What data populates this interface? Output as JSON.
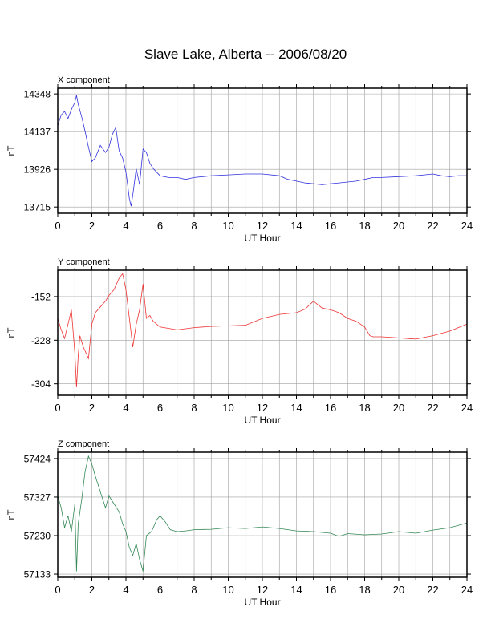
{
  "title": "Slave Lake, Alberta -- 2006/08/20",
  "chart_data": [
    {
      "type": "line",
      "panel_label": "X component",
      "xlabel": "UT Hour",
      "ylabel": "nT",
      "xlim": [
        0,
        24
      ],
      "ylim": [
        13680,
        14380
      ],
      "xticks": [
        0,
        2,
        4,
        6,
        8,
        10,
        12,
        14,
        16,
        18,
        20,
        22,
        24
      ],
      "yticks": [
        13715,
        13926,
        14137,
        14348
      ],
      "grid": true,
      "color": "#3333dd",
      "series": [
        {
          "x": [
            0,
            0.2,
            0.4,
            0.6,
            0.8,
            1.0,
            1.1,
            1.2,
            1.4,
            1.6,
            1.8,
            2.0,
            2.2,
            2.5,
            2.8,
            3.0,
            3.2,
            3.4,
            3.6,
            3.8,
            4.0,
            4.1,
            4.2,
            4.3,
            4.4,
            4.6,
            4.8,
            5.0,
            5.2,
            5.4,
            5.6,
            6.0,
            6.5,
            7.0,
            7.5,
            8.0,
            9.0,
            10.0,
            11.0,
            12.0,
            13.0,
            13.5,
            14.0,
            14.5,
            15.0,
            15.5,
            16.0,
            16.5,
            17.0,
            17.5,
            18.0,
            18.5,
            19.0,
            20.0,
            21.0,
            21.5,
            22.0,
            22.5,
            23.0,
            23.5,
            24.0
          ],
          "y": [
            14170,
            14230,
            14250,
            14210,
            14260,
            14300,
            14340,
            14290,
            14220,
            14140,
            14050,
            13970,
            13990,
            14060,
            14020,
            14050,
            14120,
            14160,
            14030,
            13990,
            13910,
            13840,
            13760,
            13720,
            13780,
            13930,
            13840,
            14040,
            14020,
            13960,
            13930,
            13890,
            13880,
            13880,
            13870,
            13880,
            13890,
            13895,
            13900,
            13900,
            13890,
            13870,
            13860,
            13850,
            13845,
            13840,
            13845,
            13850,
            13855,
            13860,
            13870,
            13880,
            13880,
            13885,
            13890,
            13895,
            13900,
            13890,
            13885,
            13890,
            13890
          ]
        }
      ]
    },
    {
      "type": "line",
      "panel_label": "Y component",
      "xlabel": "UT Hour",
      "ylabel": "nT",
      "xlim": [
        0,
        24
      ],
      "ylim": [
        -324,
        -106
      ],
      "xticks": [
        0,
        2,
        4,
        6,
        8,
        10,
        12,
        14,
        16,
        18,
        20,
        22,
        24
      ],
      "yticks": [
        -152,
        -228,
        -304
      ],
      "grid": true,
      "color": "#ee3333",
      "series": [
        {
          "x": [
            0,
            0.2,
            0.4,
            0.6,
            0.8,
            1.0,
            1.1,
            1.2,
            1.3,
            1.5,
            1.8,
            2.0,
            2.2,
            2.5,
            2.8,
            3.0,
            3.3,
            3.6,
            3.8,
            4.0,
            4.2,
            4.4,
            4.6,
            4.8,
            5.0,
            5.2,
            5.4,
            5.6,
            6.0,
            7.0,
            8.0,
            9.0,
            10.0,
            11.0,
            12.0,
            13.0,
            14.0,
            14.5,
            15.0,
            15.5,
            16.0,
            16.5,
            17.0,
            17.5,
            18.0,
            18.3,
            18.5,
            19.0,
            20.0,
            21.0,
            22.0,
            23.0,
            24.0
          ],
          "y": [
            -190,
            -210,
            -225,
            -200,
            -175,
            -250,
            -310,
            -255,
            -220,
            -240,
            -260,
            -200,
            -180,
            -170,
            -160,
            -150,
            -140,
            -120,
            -112,
            -140,
            -190,
            -240,
            -200,
            -175,
            -130,
            -190,
            -185,
            -195,
            -205,
            -210,
            -206,
            -204,
            -203,
            -202,
            -190,
            -183,
            -180,
            -174,
            -160,
            -172,
            -175,
            -180,
            -190,
            -195,
            -205,
            -220,
            -222,
            -222,
            -224,
            -226,
            -220,
            -212,
            -200
          ]
        }
      ]
    },
    {
      "type": "line",
      "panel_label": "Z component",
      "xlabel": "UT Hour",
      "ylabel": "nT",
      "xlim": [
        0,
        24
      ],
      "ylim": [
        57125,
        57440
      ],
      "xticks": [
        0,
        2,
        4,
        6,
        8,
        10,
        12,
        14,
        16,
        18,
        20,
        22,
        24
      ],
      "yticks": [
        57133,
        57230,
        57327,
        57424
      ],
      "grid": true,
      "color": "#338855",
      "series": [
        {
          "x": [
            0,
            0.2,
            0.4,
            0.6,
            0.8,
            1.0,
            1.1,
            1.2,
            1.4,
            1.6,
            1.8,
            2.0,
            2.2,
            2.5,
            2.8,
            3.0,
            3.3,
            3.6,
            3.8,
            4.0,
            4.2,
            4.4,
            4.6,
            4.8,
            5.0,
            5.2,
            5.5,
            5.8,
            6.0,
            6.3,
            6.6,
            7.0,
            7.5,
            8.0,
            9.0,
            10.0,
            11.0,
            12.0,
            13.0,
            14.0,
            15.0,
            16.0,
            16.5,
            17.0,
            18.0,
            19.0,
            20.0,
            21.0,
            22.0,
            23.0,
            24.0
          ],
          "y": [
            57330,
            57300,
            57250,
            57280,
            57240,
            57310,
            57140,
            57260,
            57320,
            57390,
            57430,
            57410,
            57380,
            57340,
            57300,
            57330,
            57310,
            57290,
            57260,
            57240,
            57200,
            57180,
            57210,
            57170,
            57140,
            57230,
            57240,
            57270,
            57280,
            57265,
            57245,
            57240,
            57242,
            57245,
            57246,
            57250,
            57248,
            57252,
            57248,
            57242,
            57240,
            57236,
            57228,
            57235,
            57232,
            57234,
            57240,
            57236,
            57244,
            57250,
            57262
          ]
        }
      ]
    }
  ]
}
